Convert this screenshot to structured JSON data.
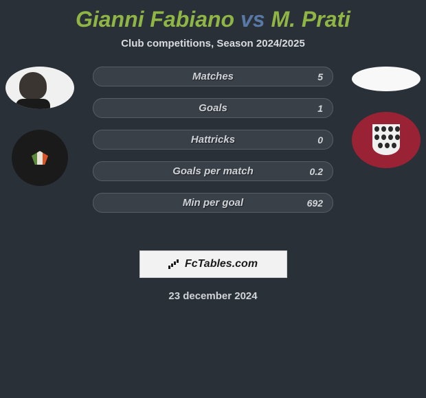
{
  "title": {
    "player1": "Gianni Fabiano",
    "vs": "vs",
    "player2": "M. Prati"
  },
  "subtitle": "Club competitions, Season 2024/2025",
  "stats": [
    {
      "label": "Matches",
      "value": "5"
    },
    {
      "label": "Goals",
      "value": "1"
    },
    {
      "label": "Hattricks",
      "value": "0"
    },
    {
      "label": "Goals per match",
      "value": "0.2"
    },
    {
      "label": "Min per goal",
      "value": "692"
    }
  ],
  "brand": "FcTables.com",
  "date": "23 december 2024",
  "style": {
    "background": "#2a3038",
    "accent_green": "#8fb545",
    "accent_blue": "#5878a5",
    "bar_bg": "#3a4048",
    "bar_border": "#585e66",
    "club2_bg": "#9a2235"
  }
}
